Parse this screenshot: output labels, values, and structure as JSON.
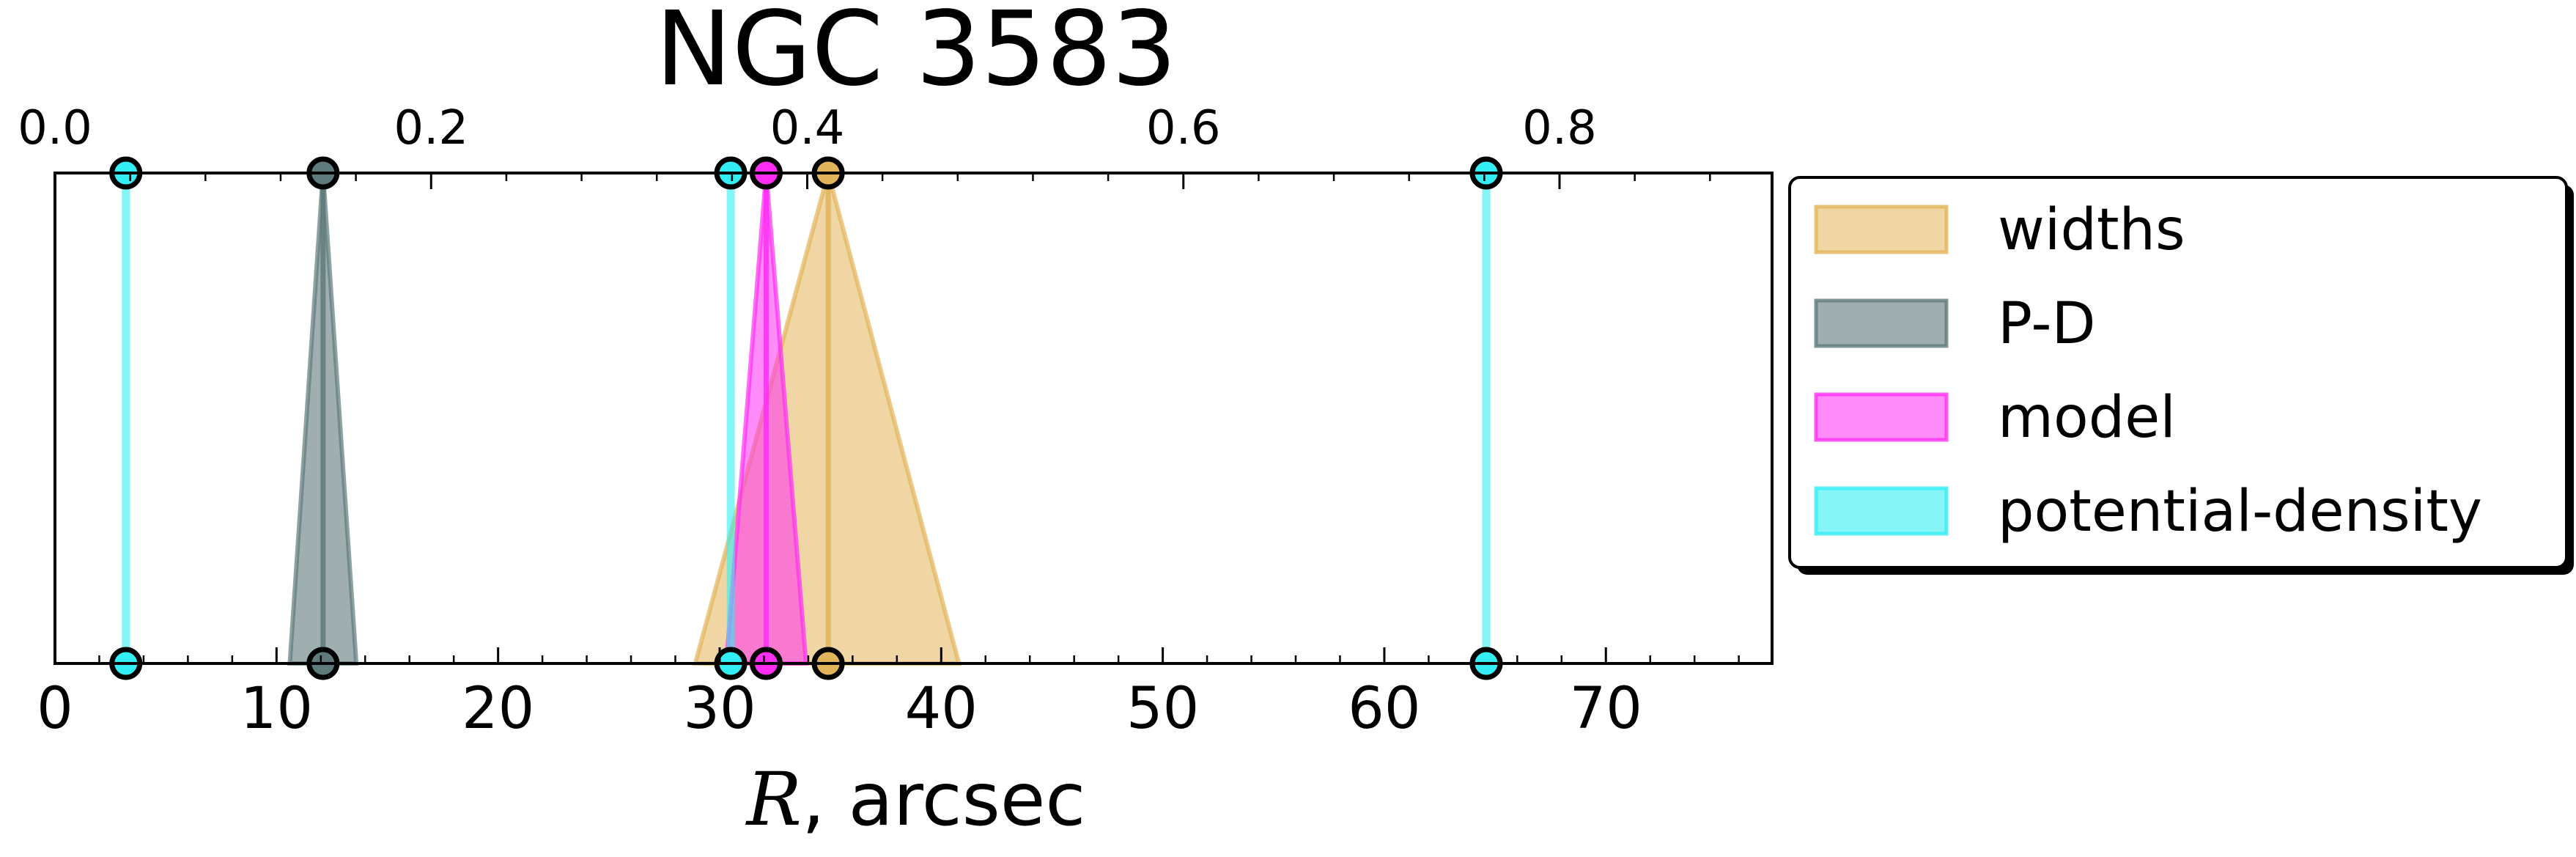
{
  "chart_data": {
    "type": "area",
    "title": "NGC 3583",
    "xlabel_symbol": "R",
    "xlabel_unit": ", arcsec",
    "xlim": [
      0,
      77.5
    ],
    "xticks": [
      0,
      10,
      20,
      30,
      40,
      50,
      60,
      70
    ],
    "xtick_labels": [
      "0",
      "10",
      "20",
      "30",
      "40",
      "50",
      "60",
      "70"
    ],
    "top_axis": {
      "ticks": [
        0.0,
        0.2,
        0.4,
        0.6,
        0.8
      ],
      "tick_labels": [
        "0.0",
        "0.2",
        "0.4",
        "0.6",
        "0.8"
      ],
      "max_at_right_edge": 0.913
    },
    "legend": {
      "placement": "outside-right",
      "entries": [
        "widths",
        "P-D",
        "model",
        "potential-density"
      ]
    },
    "grid": false,
    "series": [
      {
        "name": "widths",
        "color": "#E2B45A",
        "fill_opacity": 0.55,
        "kind": "triangle",
        "center": 34.9,
        "low": 28.9,
        "high": 40.8
      },
      {
        "name": "P-D",
        "color": "#5F7A7A",
        "fill_opacity": 0.6,
        "kind": "triangle",
        "center": 12.1,
        "low": 10.6,
        "high": 13.6
      },
      {
        "name": "model",
        "color": "#FF2EF2",
        "fill_opacity": 0.55,
        "kind": "triangle",
        "center": 32.1,
        "low": 30.3,
        "high": 33.9
      },
      {
        "name": "potential-density",
        "color": "#33EEF4",
        "fill_opacity": 0.6,
        "kind": "lines",
        "values": [
          3.2,
          30.5,
          64.6
        ]
      }
    ]
  }
}
